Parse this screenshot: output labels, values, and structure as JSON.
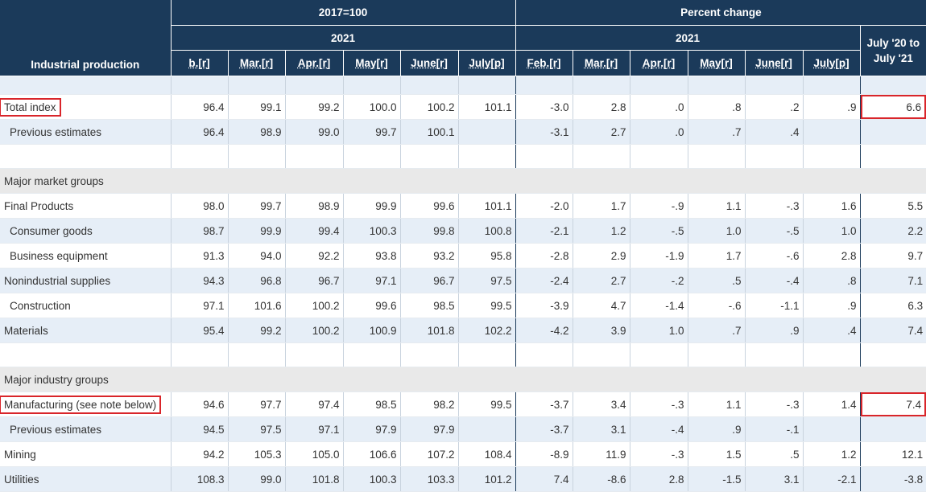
{
  "header": {
    "label_column": "Industrial production",
    "group_index": "2017=100",
    "group_pct": "Percent change",
    "year_index": "2021",
    "year_pct": "2021",
    "index_months": [
      "b.[r]",
      "Mar.[r]",
      "Apr.[r]",
      "May[r]",
      "June[r]",
      "July[p]"
    ],
    "pct_months": [
      "Feb.[r]",
      "Mar.[r]",
      "Apr.[r]",
      "May[r]",
      "June[r]",
      "July[p]"
    ],
    "yoy_line1": "July '20 to",
    "yoy_line2": "July '21"
  },
  "rows": [
    {
      "label": "Total index",
      "values": [
        "96.4",
        "99.1",
        "99.2",
        "100.0",
        "100.2",
        "101.1",
        "-3.0",
        "2.8",
        ".0",
        ".8",
        ".2",
        ".9",
        "6.6"
      ]
    },
    {
      "label": "Previous estimates",
      "values": [
        "96.4",
        "98.9",
        "99.0",
        "99.7",
        "100.1",
        "",
        "-3.1",
        "2.7",
        ".0",
        ".7",
        ".4",
        "",
        ""
      ]
    },
    {
      "label": "Major market groups"
    },
    {
      "label": "Final Products",
      "values": [
        "98.0",
        "99.7",
        "98.9",
        "99.9",
        "99.6",
        "101.1",
        "-2.0",
        "1.7",
        "-.9",
        "1.1",
        "-.3",
        "1.6",
        "5.5"
      ]
    },
    {
      "label": "Consumer goods",
      "values": [
        "98.7",
        "99.9",
        "99.4",
        "100.3",
        "99.8",
        "100.8",
        "-2.1",
        "1.2",
        "-.5",
        "1.0",
        "-.5",
        "1.0",
        "2.2"
      ]
    },
    {
      "label": "Business equipment",
      "values": [
        "91.3",
        "94.0",
        "92.2",
        "93.8",
        "93.2",
        "95.8",
        "-2.8",
        "2.9",
        "-1.9",
        "1.7",
        "-.6",
        "2.8",
        "9.7"
      ]
    },
    {
      "label": "Nonindustrial supplies",
      "values": [
        "94.3",
        "96.8",
        "96.7",
        "97.1",
        "96.7",
        "97.5",
        "-2.4",
        "2.7",
        "-.2",
        ".5",
        "-.4",
        ".8",
        "7.1"
      ]
    },
    {
      "label": "Construction",
      "values": [
        "97.1",
        "101.6",
        "100.2",
        "99.6",
        "98.5",
        "99.5",
        "-3.9",
        "4.7",
        "-1.4",
        "-.6",
        "-1.1",
        ".9",
        "6.3"
      ]
    },
    {
      "label": "Materials",
      "values": [
        "95.4",
        "99.2",
        "100.2",
        "100.9",
        "101.8",
        "102.2",
        "-4.2",
        "3.9",
        "1.0",
        ".7",
        ".9",
        ".4",
        "7.4"
      ]
    },
    {
      "label": "Major industry groups"
    },
    {
      "label": "Manufacturing (see note below)",
      "values": [
        "94.6",
        "97.7",
        "97.4",
        "98.5",
        "98.2",
        "99.5",
        "-3.7",
        "3.4",
        "-.3",
        "1.1",
        "-.3",
        "1.4",
        "7.4"
      ]
    },
    {
      "label": "Previous estimates",
      "values": [
        "94.5",
        "97.5",
        "97.1",
        "97.9",
        "97.9",
        "",
        "-3.7",
        "3.1",
        "-.4",
        ".9",
        "-.1",
        "",
        ""
      ]
    },
    {
      "label": "Mining",
      "values": [
        "94.2",
        "105.3",
        "105.0",
        "106.6",
        "107.2",
        "108.4",
        "-8.9",
        "11.9",
        "-.3",
        "1.5",
        ".5",
        "1.2",
        "12.1"
      ]
    },
    {
      "label": "Utilities",
      "values": [
        "108.3",
        "99.0",
        "101.8",
        "100.3",
        "103.3",
        "101.2",
        "7.4",
        "-8.6",
        "2.8",
        "-1.5",
        "3.1",
        "-2.1",
        "-3.8"
      ]
    }
  ],
  "highlight_color": "#d9252a",
  "header_color": "#1b3a5a"
}
